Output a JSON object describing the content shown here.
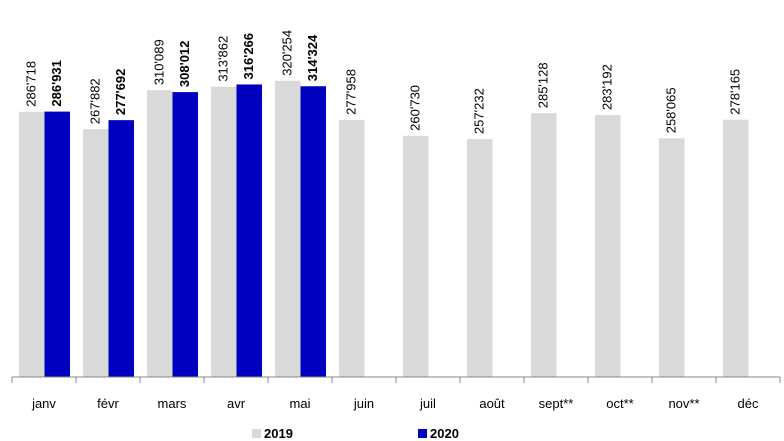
{
  "chart_data": {
    "type": "bar",
    "categories": [
      "janv",
      "févr",
      "mars",
      "avr",
      "mai",
      "juin",
      "juil",
      "août",
      "sept**",
      "oct**",
      "nov**",
      "déc"
    ],
    "series": [
      {
        "name": "2019",
        "color": "#d9d9d9",
        "values": [
          286718,
          267882,
          310089,
          313862,
          320254,
          277958,
          260730,
          257232,
          285128,
          283192,
          258065,
          278165
        ],
        "value_labels": [
          "286'718",
          "267'882",
          "310'089",
          "313'862",
          "320'254",
          "277'958",
          "260'730",
          "257'232",
          "285'128",
          "283'192",
          "258'065",
          "278'165"
        ]
      },
      {
        "name": "2020",
        "color": "#0000bf",
        "values": [
          286931,
          277692,
          308012,
          316266,
          314324,
          null,
          null,
          null,
          null,
          null,
          null,
          null
        ],
        "value_labels": [
          "286'931",
          "277'692",
          "308'012",
          "316'266",
          "314'324",
          null,
          null,
          null,
          null,
          null,
          null,
          null
        ]
      }
    ],
    "ylim": [
      0,
      400000
    ]
  }
}
